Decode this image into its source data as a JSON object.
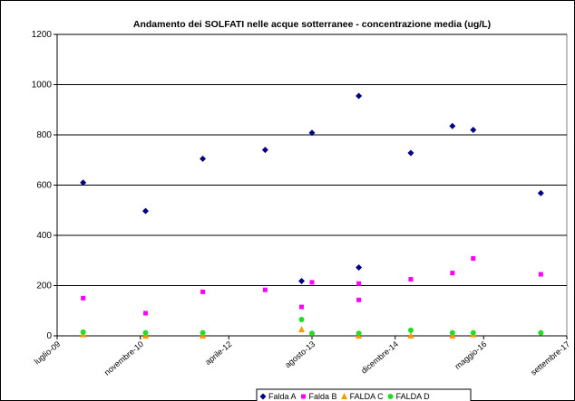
{
  "chart_data": {
    "type": "scatter",
    "title": "Andamento dei SOLFATI nelle acque sotterranee - concentrazione media (ug/L)",
    "xlim": [
      "2009-07",
      "2017-09"
    ],
    "xticks": [
      {
        "value": "2009-07",
        "label": "luglio-09"
      },
      {
        "value": "2010-11",
        "label": "novembre-10"
      },
      {
        "value": "2012-04",
        "label": "aprile-12"
      },
      {
        "value": "2013-08",
        "label": "agosto-13"
      },
      {
        "value": "2014-12",
        "label": "dicembre-14"
      },
      {
        "value": "2016-05",
        "label": "maggio-16"
      },
      {
        "value": "2017-09",
        "label": "settembre-17"
      }
    ],
    "ylim": [
      0,
      1200
    ],
    "yticks": [
      0,
      200,
      400,
      600,
      800,
      1000,
      1200
    ],
    "grid": true,
    "legend": "bottom",
    "series": [
      {
        "name": "Falda A",
        "color": "#000080",
        "marker": "diamond",
        "x": [
          "2009-12",
          "2010-12",
          "2011-11",
          "2012-11",
          "2013-06",
          "2013-08",
          "2014-05",
          "2014-05",
          "2015-03",
          "2015-11",
          "2016-03",
          "2017-04"
        ],
        "values": [
          610,
          497,
          705,
          740,
          218,
          808,
          955,
          272,
          728,
          835,
          820,
          568
        ]
      },
      {
        "name": "Falda B",
        "color": "#ff00ff",
        "marker": "square",
        "x": [
          "2009-12",
          "2010-12",
          "2011-11",
          "2012-11",
          "2013-06",
          "2013-08",
          "2014-05",
          "2014-05",
          "2015-03",
          "2015-11",
          "2016-03",
          "2017-04"
        ],
        "values": [
          150,
          90,
          175,
          183,
          115,
          213,
          208,
          143,
          225,
          250,
          308,
          245
        ]
      },
      {
        "name": "FALDA C",
        "color": "#ff9900",
        "marker": "triangle",
        "x": [
          "2009-12",
          "2010-12",
          "2011-11",
          "2013-06",
          "2014-05",
          "2015-03",
          "2015-11",
          "2016-03"
        ],
        "values": [
          5,
          0,
          0,
          25,
          0,
          0,
          0,
          5
        ]
      },
      {
        "name": "FALDA D",
        "color": "#22dd22",
        "marker": "circle",
        "x": [
          "2009-12",
          "2010-12",
          "2011-11",
          "2013-06",
          "2013-08",
          "2014-05",
          "2015-03",
          "2015-11",
          "2016-03",
          "2017-04"
        ],
        "values": [
          15,
          12,
          12,
          65,
          10,
          10,
          22,
          12,
          12,
          12
        ]
      }
    ]
  }
}
